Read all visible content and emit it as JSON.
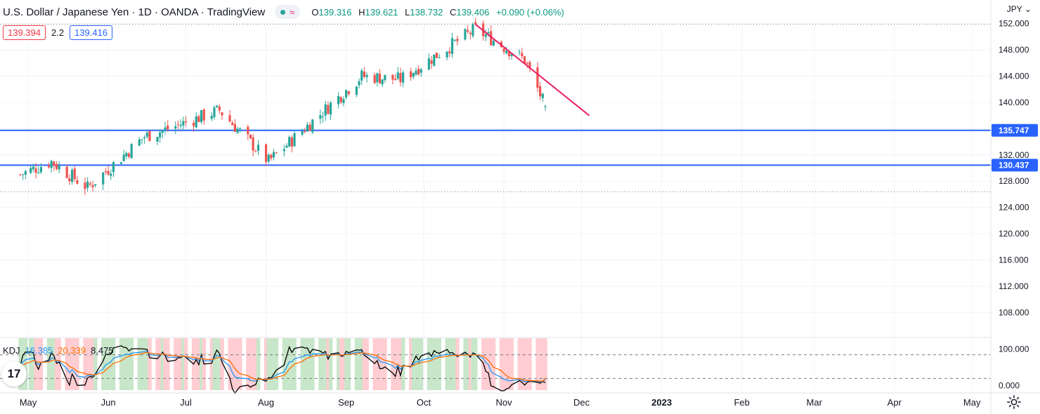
{
  "header": {
    "title": "U.S. Dollar / Japanese Yen · 1D · OANDA · TradingView",
    "status_icons": [
      "market-open-dot-icon",
      "wave-icon"
    ],
    "open_label": "O",
    "open": "139.316",
    "high_label": "H",
    "high": "139.621",
    "low_label": "L",
    "low": "138.732",
    "close_label": "C",
    "close": "139.406",
    "change": "+0.090 (+0.06%)"
  },
  "quote": {
    "bid": "139.394",
    "spread": "2.2",
    "ask": "139.416"
  },
  "currency": "JPY",
  "kdj": {
    "label": "KDJ",
    "k": "16.385",
    "d": "20.339",
    "j": "8.475"
  },
  "logo_text": "17",
  "colors": {
    "up": "#26a69a",
    "down": "#ef5350",
    "hline": "#2962ff",
    "trend": "#e91e63",
    "k": "#2196f3",
    "d": "#ff6d00",
    "j": "#000000",
    "kdj_bg_up": "#c8e6c9",
    "kdj_bg_down": "#ffcdd2"
  },
  "chart_data": {
    "type": "candlestick",
    "price_axis": {
      "ticks": [
        "152.000",
        "148.000",
        "144.000",
        "140.000",
        "132.000",
        "128.000",
        "124.000",
        "120.000",
        "116.000",
        "112.000",
        "108.000"
      ],
      "range": [
        104.5,
        152.4
      ]
    },
    "time_axis": {
      "labels": [
        "May",
        "Jun",
        "Jul",
        "Aug",
        "Sep",
        "Oct",
        "Nov",
        "Dec",
        "2023",
        "Feb",
        "Mar",
        "Apr",
        "May"
      ]
    },
    "horizontal_lines": [
      {
        "label": "135.747",
        "value": 135.747
      },
      {
        "label": "130.437",
        "value": 130.437
      }
    ],
    "dotted_levels": [
      151.9,
      126.4
    ],
    "trend_line": {
      "from": [
        "2022-10-21",
        151.9
      ],
      "to": [
        "2022-12-04",
        138.0
      ]
    },
    "ohlc_segments": [
      {
        "from": "2022-04-28",
        "to": "2022-05-10",
        "start": 129.0,
        "end": 131.0
      },
      {
        "from": "2022-05-10",
        "to": "2022-05-24",
        "start": 131.0,
        "end": 127.0
      },
      {
        "from": "2022-05-24",
        "to": "2022-06-15",
        "start": 127.0,
        "end": 134.8
      },
      {
        "from": "2022-06-15",
        "to": "2022-06-22",
        "start": 134.8,
        "end": 135.7
      },
      {
        "from": "2022-06-22",
        "to": "2022-07-14",
        "start": 135.7,
        "end": 138.8
      },
      {
        "from": "2022-07-14",
        "to": "2022-08-02",
        "start": 138.8,
        "end": 131.0
      },
      {
        "from": "2022-08-02",
        "to": "2022-09-07",
        "start": 131.0,
        "end": 144.0
      },
      {
        "from": "2022-09-07",
        "to": "2022-09-22",
        "start": 144.0,
        "end": 143.5
      },
      {
        "from": "2022-09-22",
        "to": "2022-10-21",
        "start": 143.5,
        "end": 151.2
      },
      {
        "from": "2022-10-21",
        "to": "2022-11-09",
        "start": 151.2,
        "end": 146.5
      },
      {
        "from": "2022-11-09",
        "to": "2022-11-17",
        "start": 146.5,
        "end": 139.4
      }
    ],
    "kdj_axis": {
      "ticks": [
        "100.000",
        "0.000"
      ],
      "range": [
        -12,
        130
      ]
    }
  }
}
